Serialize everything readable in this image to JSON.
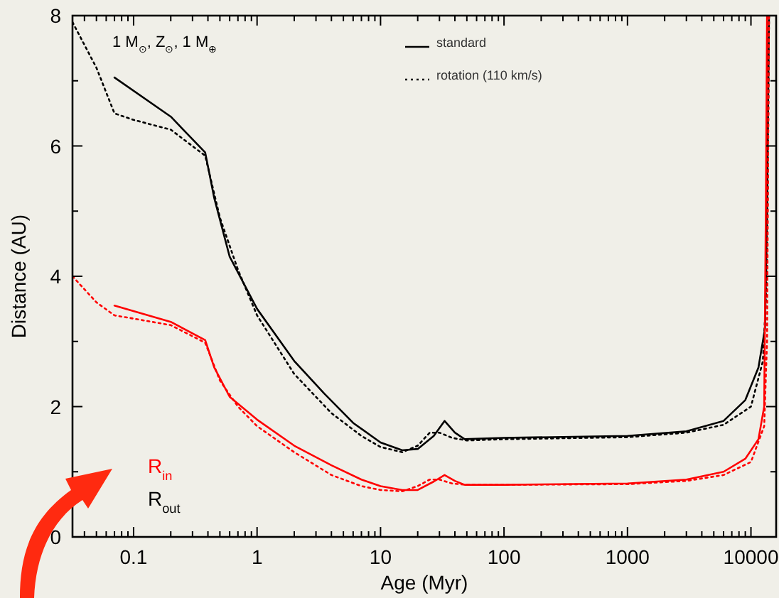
{
  "chart_data": {
    "type": "line",
    "xlabel": "Age (Myr)",
    "ylabel": "Distance (AU)",
    "log": "x",
    "xlim": [
      0.032,
      16000
    ],
    "ylim": [
      0,
      8
    ],
    "xticks": [
      {
        "value": 0.04,
        "label": null
      },
      {
        "value": 0.05,
        "label": null
      },
      {
        "value": 0.06,
        "label": null
      },
      {
        "value": 0.07,
        "label": null
      },
      {
        "value": 0.08,
        "label": null
      },
      {
        "value": 0.09,
        "label": null
      },
      0.1,
      {
        "value": 0.2,
        "label": null
      },
      {
        "value": 0.3,
        "label": null
      },
      {
        "value": 0.4,
        "label": null
      },
      {
        "value": 0.5,
        "label": null
      },
      {
        "value": 0.6,
        "label": null
      },
      {
        "value": 0.7,
        "label": null
      },
      {
        "value": 0.8,
        "label": null
      },
      {
        "value": 0.9,
        "label": null
      },
      1,
      {
        "value": 2,
        "label": null
      },
      {
        "value": 3,
        "label": null
      },
      {
        "value": 4,
        "label": null
      },
      {
        "value": 5,
        "label": null
      },
      {
        "value": 6,
        "label": null
      },
      {
        "value": 7,
        "label": null
      },
      {
        "value": 8,
        "label": null
      },
      {
        "value": 9,
        "label": null
      },
      10,
      {
        "value": 20,
        "label": null
      },
      {
        "value": 30,
        "label": null
      },
      {
        "value": 40,
        "label": null
      },
      {
        "value": 50,
        "label": null
      },
      {
        "value": 60,
        "label": null
      },
      {
        "value": 70,
        "label": null
      },
      {
        "value": 80,
        "label": null
      },
      {
        "value": 90,
        "label": null
      },
      100,
      {
        "value": 200,
        "label": null
      },
      {
        "value": 300,
        "label": null
      },
      {
        "value": 400,
        "label": null
      },
      {
        "value": 500,
        "label": null
      },
      {
        "value": 600,
        "label": null
      },
      {
        "value": 700,
        "label": null
      },
      {
        "value": 800,
        "label": null
      },
      {
        "value": 900,
        "label": null
      },
      1000,
      {
        "value": 2000,
        "label": null
      },
      {
        "value": 3000,
        "label": null
      },
      {
        "value": 4000,
        "label": null
      },
      {
        "value": 5000,
        "label": null
      },
      {
        "value": 6000,
        "label": null
      },
      {
        "value": 7000,
        "label": null
      },
      {
        "value": 8000,
        "label": null
      },
      {
        "value": 9000,
        "label": null
      },
      10000
    ],
    "yticks": [
      0,
      {
        "value": 1,
        "label": null
      },
      2,
      {
        "value": 3,
        "label": null
      },
      4,
      {
        "value": 5,
        "label": null
      },
      6,
      {
        "value": 7,
        "label": null
      },
      8
    ],
    "legend": "top",
    "grid": false,
    "annotations": [
      "1 M$_{⊙}$, Z$_{⊙}$, 1 M$_{⊕}$",
      "R$_{in}$",
      "R$_{out}$"
    ],
    "series": [
      {
        "name": "standard",
        "color": "#000000",
        "line_style": "solid",
        "x": [
          0.07,
          0.2,
          0.38,
          0.45,
          0.6,
          1,
          2,
          3.5,
          6,
          10,
          15,
          20,
          27,
          33,
          40,
          48,
          100,
          1000,
          3000,
          6000,
          9000,
          11500,
          13000,
          13500,
          14000
        ],
        "values": [
          7.05,
          6.45,
          5.9,
          5.2,
          4.3,
          3.5,
          2.7,
          2.2,
          1.75,
          1.45,
          1.33,
          1.35,
          1.55,
          1.78,
          1.6,
          1.5,
          1.52,
          1.55,
          1.62,
          1.78,
          2.1,
          2.6,
          3.2,
          5,
          8
        ]
      },
      {
        "name": "rotation (110 km/s)",
        "color": "#000000",
        "line_style": "dotted",
        "x": [
          0.032,
          0.05,
          0.07,
          0.1,
          0.2,
          0.38,
          0.5,
          0.7,
          1,
          2,
          4,
          7,
          10,
          15,
          20,
          25,
          30,
          38,
          50,
          100,
          1000,
          3000,
          6000,
          10000,
          12500,
          13500,
          14000
        ],
        "values": [
          7.9,
          7.2,
          6.5,
          6.4,
          6.25,
          5.85,
          4.9,
          4.1,
          3.4,
          2.5,
          1.9,
          1.55,
          1.38,
          1.3,
          1.4,
          1.6,
          1.6,
          1.52,
          1.48,
          1.5,
          1.53,
          1.6,
          1.72,
          2.0,
          2.7,
          4,
          8
        ]
      },
      {
        "color": "#ff0000",
        "line_style": "solid",
        "x": [
          0.07,
          0.2,
          0.38,
          0.45,
          0.6,
          1,
          2,
          4,
          7,
          10,
          15,
          20,
          27,
          33,
          40,
          48,
          100,
          1000,
          3000,
          6000,
          9000,
          11500,
          12800,
          13200,
          13500
        ],
        "values": [
          3.55,
          3.3,
          3.02,
          2.6,
          2.15,
          1.8,
          1.4,
          1.1,
          0.88,
          0.78,
          0.72,
          0.72,
          0.85,
          0.95,
          0.86,
          0.8,
          0.8,
          0.82,
          0.88,
          1.0,
          1.2,
          1.5,
          2,
          5,
          8
        ]
      },
      {
        "color": "#ff0000",
        "line_style": "dotted",
        "x": [
          0.032,
          0.05,
          0.07,
          0.1,
          0.2,
          0.38,
          0.5,
          0.7,
          1,
          2,
          4,
          7,
          10,
          15,
          20,
          25,
          30,
          38,
          50,
          100,
          1000,
          3000,
          6000,
          10000,
          12800,
          13500,
          14000
        ],
        "values": [
          4.0,
          3.6,
          3.4,
          3.35,
          3.25,
          2.98,
          2.4,
          2.0,
          1.7,
          1.3,
          0.95,
          0.78,
          0.72,
          0.7,
          0.78,
          0.88,
          0.88,
          0.82,
          0.8,
          0.8,
          0.81,
          0.86,
          0.95,
          1.15,
          1.7,
          3,
          8
        ]
      }
    ]
  }
}
